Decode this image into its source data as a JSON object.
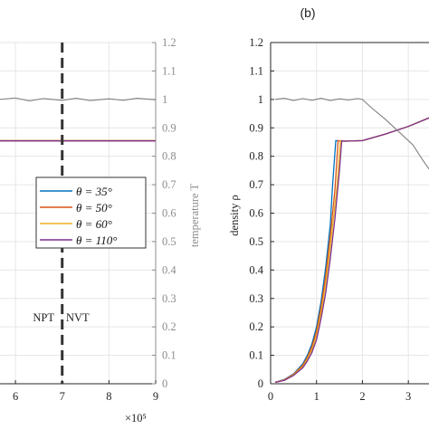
{
  "panel_b_label": "(b)",
  "colors": {
    "theta_35": "#0072BD",
    "theta_50": "#D95319",
    "theta_60": "#EDB120",
    "theta_110": "#7E2F8E",
    "temperature": "#808080",
    "axis_gray": "#8c8c8c",
    "grid": "#e6e6e6"
  },
  "texts": {
    "temperature_axis_label": "temperature T",
    "x_exponent": "×10⁵",
    "npt": "NPT",
    "nvt": "NVT",
    "density_axis_label": "density ρ"
  },
  "legend": [
    {
      "label": "θ = 35°",
      "color": "#0072BD"
    },
    {
      "label": "θ = 50°",
      "color": "#D95319"
    },
    {
      "label": "θ = 60°",
      "color": "#EDB120"
    },
    {
      "label": "θ = 110°",
      "color": "#7E2F8E"
    }
  ],
  "chart_data": [
    {
      "type": "line",
      "panel": "a (partially visible)",
      "xlabel": "",
      "x_multiplier": "×10⁵",
      "x_ticks": [
        "6",
        "7",
        "8",
        "9"
      ],
      "xlim": [
        5.65,
        9
      ],
      "right_ylabel": "temperature T",
      "right_yticks": [
        "0",
        "0.1",
        "0.2",
        "0.3",
        "0.4",
        "0.5",
        "0.6",
        "0.7",
        "0.8",
        "0.9",
        "1",
        "1.1",
        "1.2"
      ],
      "ylim": [
        0,
        1.2
      ],
      "vertical_marker": {
        "x": 7,
        "style": "dashed",
        "left_label": "NPT",
        "right_label": "NVT"
      },
      "series": [
        {
          "name": "θ = 35°",
          "x": [
            5.65,
            9
          ],
          "y": [
            0.855,
            0.855
          ]
        },
        {
          "name": "θ = 50°",
          "x": [
            5.65,
            9
          ],
          "y": [
            0.855,
            0.855
          ]
        },
        {
          "name": "θ = 60°",
          "x": [
            5.65,
            9
          ],
          "y": [
            0.855,
            0.855
          ]
        },
        {
          "name": "θ = 110°",
          "x": [
            5.65,
            9
          ],
          "y": [
            0.854,
            0.854
          ]
        },
        {
          "x": [
            5.65,
            6.0,
            6.3,
            6.6,
            7.0,
            7.3,
            7.6,
            8.0,
            8.3,
            8.6,
            9.0
          ],
          "y": [
            1.0,
            1.005,
            0.995,
            1.003,
            0.997,
            1.004,
            0.996,
            1.002,
            0.997,
            1.004,
            0.999
          ]
        }
      ],
      "legend_position": "center"
    },
    {
      "type": "line",
      "panel": "b",
      "xlabel": "",
      "x_ticks": [
        "0",
        "1",
        "2",
        "3"
      ],
      "xlim": [
        0,
        3.45
      ],
      "ylabel": "density ρ",
      "yticks": [
        "0",
        "0.1",
        "0.2",
        "0.3",
        "0.4",
        "0.5",
        "0.6",
        "0.7",
        "0.8",
        "0.9",
        "1",
        "1.1",
        "1.2"
      ],
      "ylim": [
        0,
        1.2
      ],
      "grid": true,
      "series": [
        {
          "name": "θ = 35°",
          "x": [
            0.1,
            0.3,
            0.5,
            0.7,
            0.8,
            0.9,
            1.0,
            1.1,
            1.2,
            1.3,
            1.35,
            1.42,
            1.55,
            2.0,
            2.5,
            3.0,
            3.45
          ],
          "y": [
            0.005,
            0.015,
            0.035,
            0.07,
            0.1,
            0.14,
            0.2,
            0.29,
            0.41,
            0.56,
            0.7,
            0.855,
            0.853,
            0.855,
            0.878,
            0.905,
            0.935
          ]
        },
        {
          "name": "θ = 50°",
          "x": [
            0.1,
            0.3,
            0.5,
            0.7,
            0.8,
            0.9,
            1.0,
            1.1,
            1.2,
            1.3,
            1.4,
            1.47,
            1.55,
            2.0,
            2.5,
            3.0,
            3.45
          ],
          "y": [
            0.005,
            0.014,
            0.033,
            0.065,
            0.093,
            0.13,
            0.185,
            0.27,
            0.38,
            0.52,
            0.68,
            0.855,
            0.853,
            0.855,
            0.878,
            0.905,
            0.935
          ]
        },
        {
          "name": "θ = 60°",
          "x": [
            0.1,
            0.3,
            0.5,
            0.7,
            0.8,
            0.9,
            1.0,
            1.1,
            1.2,
            1.3,
            1.45,
            1.52,
            1.6,
            2.0,
            2.5,
            3.0,
            3.45
          ],
          "y": [
            0.005,
            0.013,
            0.031,
            0.06,
            0.087,
            0.12,
            0.17,
            0.25,
            0.35,
            0.48,
            0.7,
            0.855,
            0.853,
            0.855,
            0.878,
            0.905,
            0.935
          ]
        },
        {
          "name": "θ = 110°",
          "x": [
            0.1,
            0.3,
            0.5,
            0.7,
            0.8,
            0.9,
            1.0,
            1.1,
            1.2,
            1.3,
            1.4,
            1.5,
            1.55,
            1.6,
            2.0,
            2.5,
            3.0,
            3.45
          ],
          "y": [
            0.005,
            0.012,
            0.029,
            0.056,
            0.08,
            0.11,
            0.155,
            0.23,
            0.32,
            0.44,
            0.58,
            0.75,
            0.855,
            0.853,
            0.855,
            0.878,
            0.905,
            0.935
          ]
        },
        {
          "x": [
            0.1,
            0.3,
            0.5,
            0.7,
            0.9,
            1.1,
            1.3,
            1.5,
            1.7,
            1.9,
            2.0,
            2.2,
            2.5,
            2.8,
            3.1,
            3.3,
            3.45
          ],
          "y": [
            1.0,
            1.004,
            0.996,
            1.003,
            0.997,
            1.004,
            0.996,
            1.002,
            0.998,
            1.003,
            1.0,
            0.97,
            0.93,
            0.885,
            0.84,
            0.79,
            0.755
          ]
        }
      ]
    }
  ]
}
